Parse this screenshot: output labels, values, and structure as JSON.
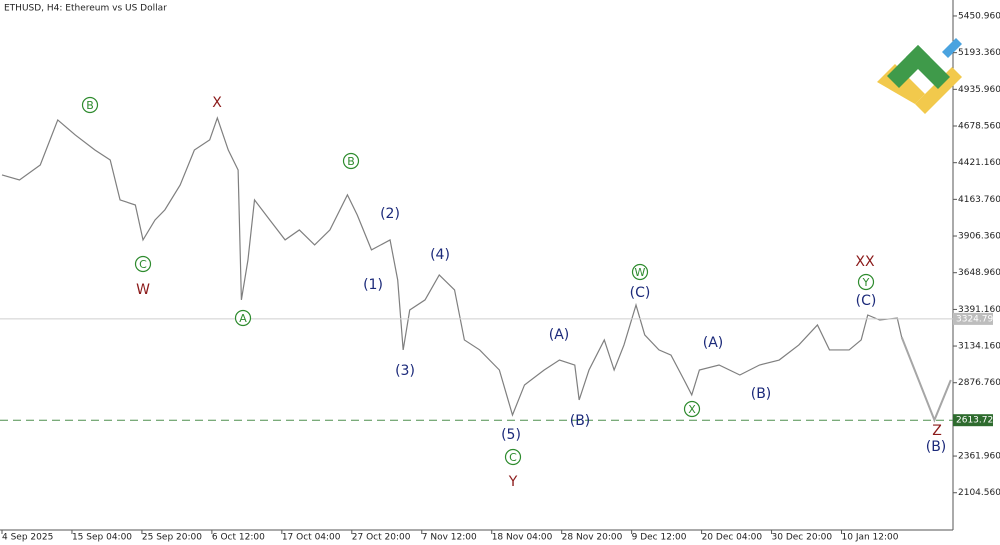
{
  "chart_data": {
    "type": "line",
    "title": "ETHUSD, H4:  Ethereum vs US Dollar",
    "xlim": [
      0,
      870
    ],
    "ylim": [
      1843,
      5563
    ],
    "xticks": [
      {
        "value": 0,
        "label": "4 Sep 2025"
      },
      {
        "value": 64,
        "label": "15 Sep 04:00"
      },
      {
        "value": 128,
        "label": "25 Sep 20:00"
      },
      {
        "value": 192,
        "label": "6 Oct 12:00"
      },
      {
        "value": 256,
        "label": "17 Oct 04:00"
      },
      {
        "value": 320,
        "label": "27 Oct 20:00"
      },
      {
        "value": 384,
        "label": "7 Nov 12:00"
      },
      {
        "value": 448,
        "label": "18 Nov 04:00"
      },
      {
        "value": 512,
        "label": "28 Nov 20:00"
      },
      {
        "value": 576,
        "label": "9 Dec 12:00"
      },
      {
        "value": 640,
        "label": "20 Dec 04:00"
      },
      {
        "value": 704,
        "label": "30 Dec 20:00"
      },
      {
        "value": 768,
        "label": "10 Jan 12:00"
      }
    ],
    "yticks": [
      {
        "value": 5450.96,
        "label": "5450.960"
      },
      {
        "value": 5193.36,
        "label": "5193.360"
      },
      {
        "value": 4935.96,
        "label": "4935.960"
      },
      {
        "value": 4678.56,
        "label": "4678.560"
      },
      {
        "value": 4421.16,
        "label": "4421.160"
      },
      {
        "value": 4163.76,
        "label": "4163.760"
      },
      {
        "value": 3906.36,
        "label": "3906.360"
      },
      {
        "value": 3648.96,
        "label": "3648.960"
      },
      {
        "value": 3391.16,
        "label": "3391.160"
      },
      {
        "value": 3134.16,
        "label": "3134.160"
      },
      {
        "value": 2876.76,
        "label": "2876.760"
      },
      {
        "value": 2361.96,
        "label": "2361.960"
      },
      {
        "value": 2104.56,
        "label": "2104.560"
      }
    ],
    "series": [
      {
        "color": "#7f7f7f",
        "x": [
          0,
          16,
          35,
          51,
          67,
          85,
          99,
          108,
          122,
          129,
          140,
          149,
          163,
          176,
          190,
          197,
          207,
          216,
          219,
          225,
          231,
          245,
          259,
          272,
          286,
          300,
          316,
          325,
          338,
          355,
          362,
          367,
          373,
          387,
          400,
          414,
          423,
          437,
          455,
          467,
          478,
          496,
          510,
          524,
          528,
          537,
          551,
          560,
          569,
          580,
          588,
          601,
          612,
          624,
          631,
          638,
          656,
          675,
          693,
          711,
          729,
          746,
          757,
          775,
          786,
          792,
          803,
          819,
          823
        ],
        "values": [
          4335,
          4300,
          4405,
          4721,
          4616,
          4510,
          4440,
          4160,
          4124,
          3879,
          4019,
          4090,
          4265,
          4510,
          4581,
          4735,
          4510,
          4370,
          3458,
          3738,
          4160,
          4019,
          3879,
          3949,
          3844,
          3949,
          4195,
          4054,
          3809,
          3879,
          3598,
          3107,
          3387,
          3458,
          3633,
          3528,
          3177,
          3107,
          2966,
          2650,
          2861,
          2966,
          3036,
          3001,
          2756,
          2966,
          3177,
          2966,
          3142,
          3422,
          3212,
          3107,
          3071,
          2896,
          2791,
          2966,
          3001,
          2931,
          3001,
          3036,
          3142,
          3282,
          3107,
          3107,
          3177,
          3352,
          3317,
          3331,
          3198
        ]
      },
      {
        "color": "#a6a6a6",
        "x": [
          823,
          853,
          868
        ],
        "values": [
          3198,
          2615,
          2896
        ]
      }
    ],
    "levels": [
      {
        "value": 3324.799,
        "color": "#cfcfcf",
        "box": "#bdbdbd"
      },
      {
        "value": 2613.725,
        "color": "#4e8f4e",
        "box": "#2e6b2e",
        "dashed": true
      }
    ],
    "annotations": [
      {
        "text": "B",
        "style": "circle"
      },
      {
        "text": "X",
        "style": "red"
      },
      {
        "text": "C",
        "style": "circle"
      },
      {
        "text": "W",
        "style": "red"
      },
      {
        "text": "A",
        "style": "circle"
      },
      {
        "text": "B",
        "style": "circle"
      },
      {
        "text": "(2)",
        "style": "blue"
      },
      {
        "text": "(1)",
        "style": "blue"
      },
      {
        "text": "(4)",
        "style": "blue"
      },
      {
        "text": "(3)",
        "style": "blue"
      },
      {
        "text": "(A)",
        "style": "blue"
      },
      {
        "text": "(5)",
        "style": "blue"
      },
      {
        "text": "C",
        "style": "circle"
      },
      {
        "text": "Y",
        "style": "red"
      },
      {
        "text": "(B)",
        "style": "blue"
      },
      {
        "text": "W",
        "style": "circle"
      },
      {
        "text": "(C)",
        "style": "blue"
      },
      {
        "text": "X",
        "style": "circle"
      },
      {
        "text": "(A)",
        "style": "blue"
      },
      {
        "text": "(B)",
        "style": "blue"
      },
      {
        "text": "XX",
        "style": "red"
      },
      {
        "text": "Y",
        "style": "circle"
      },
      {
        "text": "(C)",
        "style": "blue"
      },
      {
        "text": "Z",
        "style": "red"
      },
      {
        "text": "(B)",
        "style": "blue"
      }
    ]
  }
}
